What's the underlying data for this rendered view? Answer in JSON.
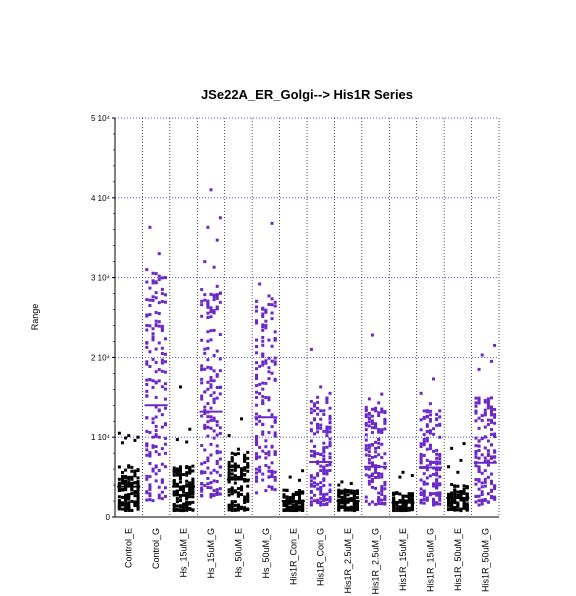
{
  "chart_data": {
    "type": "scatter",
    "title": "JSe22A_ER_Golgi--> His1R Series",
    "xlabel": "",
    "ylabel": "Range",
    "ylim": [
      0,
      50000
    ],
    "y_ticks": [
      {
        "value": 0,
        "label": "0"
      },
      {
        "value": 10000,
        "label": "1 10⁴"
      },
      {
        "value": 20000,
        "label": "2 10⁴"
      },
      {
        "value": 30000,
        "label": "3 10⁴"
      },
      {
        "value": 40000,
        "label": "4 10⁴"
      },
      {
        "value": 50000,
        "label": "5 10⁴"
      }
    ],
    "grid": true,
    "categories": [
      "Control_E",
      "Control_G",
      "Hs_15uM_E",
      "Hs_15uM_G",
      "Hs_50uM_E",
      "Hs_50uM_G",
      "His1R_Con_E",
      "His1R_Con_G",
      "His1R_2.5uM_E",
      "His1R_2.5uM_G",
      "His1R_15uM_E",
      "His1R_15uM_G",
      "His1R_50uM_E",
      "His1R_50uM_G"
    ],
    "series_colors": {
      "E": "#000000",
      "G": "#6a28c8"
    },
    "grid_color": "#2233cc",
    "groups": [
      {
        "category": "Control_E",
        "color": "#000000",
        "mean": 3800,
        "low": 800,
        "high": 10500,
        "n": 140,
        "points": [
          10500,
          10200,
          10000,
          9900,
          9600,
          9300
        ]
      },
      {
        "category": "Control_G",
        "color": "#6a28c8",
        "mean": 14000,
        "low": 2000,
        "high": 36000,
        "n": 150,
        "points": [
          36300,
          33000,
          31000,
          30500,
          30000,
          29600,
          27000,
          26500,
          25500,
          24000
        ]
      },
      {
        "category": "Hs_15uM_E",
        "color": "#000000",
        "mean": 3800,
        "low": 800,
        "high": 16000,
        "n": 140,
        "points": [
          16300,
          11000,
          9700,
          9400
        ]
      },
      {
        "category": "Hs_15uM_G",
        "color": "#6a28c8",
        "mean": 13200,
        "low": 2500,
        "high": 41000,
        "n": 160,
        "points": [
          41000,
          37500,
          36300,
          34700,
          32000,
          31300,
          28500,
          27900,
          26900,
          25000
        ]
      },
      {
        "category": "Hs_50uM_E",
        "color": "#000000",
        "mean": 4700,
        "low": 800,
        "high": 12300,
        "n": 130,
        "points": [
          12300,
          10200,
          8500,
          8100
        ]
      },
      {
        "category": "Hs_50uM_G",
        "color": "#6a28c8",
        "mean": 12500,
        "low": 3000,
        "high": 37000,
        "n": 150,
        "points": [
          36800,
          29200,
          27700,
          24600,
          24000,
          23200,
          22500
        ]
      },
      {
        "category": "His1R_Con_E",
        "color": "#000000",
        "mean": 2000,
        "low": 800,
        "high": 5800,
        "n": 110,
        "points": [
          5800,
          5000,
          4600
        ]
      },
      {
        "category": "His1R_Con_G",
        "color": "#6a28c8",
        "mean": 6900,
        "low": 1500,
        "high": 21000,
        "n": 140,
        "points": [
          21000,
          16300,
          15500,
          15000,
          14700,
          13900
        ]
      },
      {
        "category": "His1R_2.5uM_E",
        "color": "#000000",
        "mean": 2000,
        "low": 800,
        "high": 4400,
        "n": 100,
        "points": [
          4400,
          4200,
          4000
        ]
      },
      {
        "category": "His1R_2.5uM_G",
        "color": "#6a28c8",
        "mean": 6300,
        "low": 1500,
        "high": 22800,
        "n": 130,
        "points": [
          22800,
          15400,
          14800,
          14300,
          13500
        ]
      },
      {
        "category": "His1R_15uM_E",
        "color": "#000000",
        "mean": 1800,
        "low": 800,
        "high": 5600,
        "n": 100,
        "points": [
          5600,
          5200,
          5000
        ]
      },
      {
        "category": "His1R_15uM_G",
        "color": "#6a28c8",
        "mean": 6200,
        "low": 1500,
        "high": 17300,
        "n": 130,
        "points": [
          17300,
          15500,
          14200,
          13300,
          12600,
          12300
        ]
      },
      {
        "category": "His1R_50uM_E",
        "color": "#000000",
        "mean": 2400,
        "low": 800,
        "high": 9200,
        "n": 100,
        "points": [
          9200,
          8600,
          7100,
          6300,
          5600
        ]
      },
      {
        "category": "His1R_50uM_G",
        "color": "#6a28c8",
        "mean": 6800,
        "low": 1500,
        "high": 21500,
        "n": 130,
        "points": [
          21500,
          20300,
          19500,
          18500,
          14800,
          14300,
          13000,
          12500
        ]
      }
    ]
  }
}
